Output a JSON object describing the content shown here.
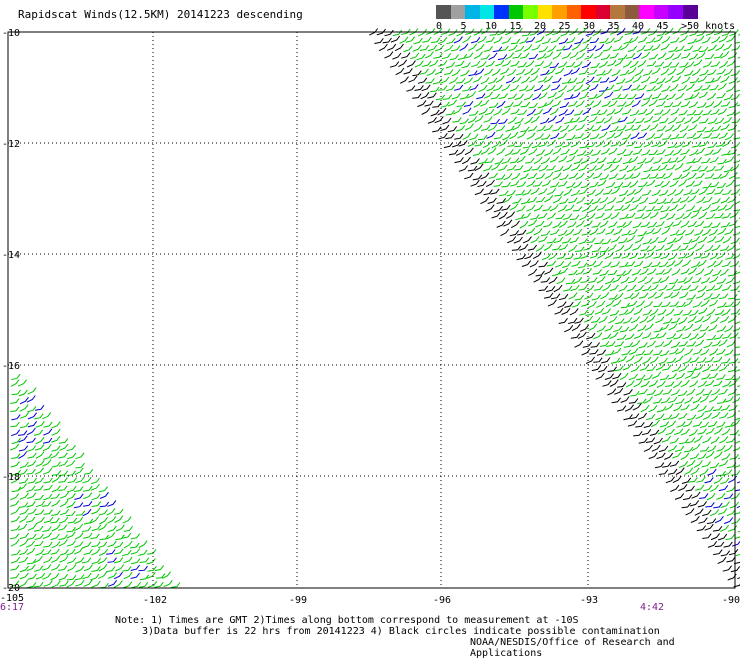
{
  "title": "Rapidscat Winds(12.5KM) 20141223 descending",
  "legend": {
    "colors": [
      "#555555",
      "#a0a0a0",
      "#00b4e6",
      "#00e6e6",
      "#0032ff",
      "#00c800",
      "#78ff00",
      "#ffe100",
      "#ffa000",
      "#ff6000",
      "#ff0000",
      "#dc0032",
      "#b4783c",
      "#8c5a3c",
      "#ff00ff",
      "#c800ff",
      "#9600ff",
      "#5a0096"
    ],
    "labels": [
      "0",
      "5",
      "10",
      "15",
      "20",
      "25",
      "30",
      "35",
      "40",
      "45",
      ">50 knots"
    ]
  },
  "axes": {
    "lat_labels": [
      "-10",
      "-12",
      "-14",
      "-16",
      "-18",
      "-20"
    ],
    "lon_labels": [
      "-105",
      "-102",
      "-99",
      "-96",
      "-93",
      "-90"
    ]
  },
  "times": {
    "left": "6:17",
    "right": "4:42"
  },
  "notes": {
    "line1": "Note: 1) Times are GMT 2)Times along bottom correspond to measurement at -10S",
    "line2": "3)Data buffer is 22 hrs from 20141223 4) Black circles indicate possible contamination"
  },
  "credit": "NOAA/NESDIS/Office of Research and Applications",
  "colors": {
    "wind_green": "#00c800",
    "wind_blue": "#0000d0",
    "wind_yellow": "#e6e600",
    "contaminated": "#000000",
    "grid": "#000000"
  }
}
